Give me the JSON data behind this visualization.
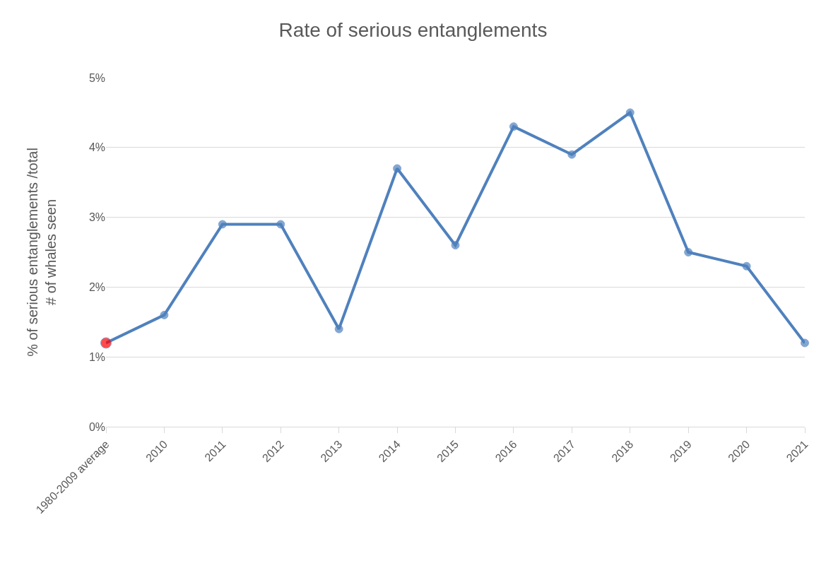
{
  "chart_data": {
    "type": "line",
    "title": "Rate of serious entanglements",
    "ylabel": "% of serious entanglements /total\n# of whales seen",
    "categories": [
      "1980-2009 average",
      "2010",
      "2011",
      "2012",
      "2013",
      "2014",
      "2015",
      "2016",
      "2017",
      "2018",
      "2019",
      "2020",
      "2021"
    ],
    "series": [
      {
        "color": "#4f81bd",
        "colors": [
          "#ff0000",
          "#4f81bd",
          "#4f81bd",
          "#4f81bd",
          "#4f81bd",
          "#4f81bd",
          "#4f81bd",
          "#4f81bd",
          "#4f81bd",
          "#4f81bd",
          "#4f81bd",
          "#4f81bd",
          "#4f81bd"
        ],
        "values": [
          1.2,
          1.6,
          2.9,
          2.9,
          1.4,
          3.7,
          2.6,
          4.3,
          3.9,
          4.5,
          2.5,
          2.3,
          1.2
        ]
      }
    ],
    "ylim": [
      0,
      5
    ],
    "yticks": [
      {
        "value": 0,
        "label": "0%"
      },
      {
        "value": 1,
        "label": "1%"
      },
      {
        "value": 2,
        "label": "2%"
      },
      {
        "value": 3,
        "label": "3%"
      },
      {
        "value": 4,
        "label": "4%"
      },
      {
        "value": 5,
        "label": "5%"
      }
    ],
    "grid": "y",
    "marker": "circle",
    "line_style": "solid"
  }
}
